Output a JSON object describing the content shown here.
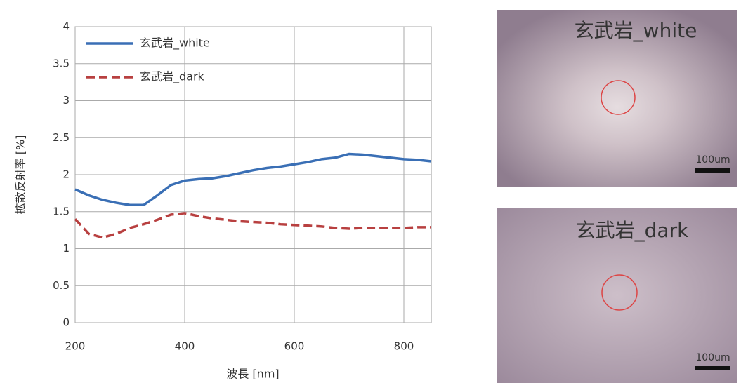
{
  "chart_data": {
    "type": "line",
    "x_label": "波長 [nm]",
    "y_label": "拡散反射率 [%]",
    "x": [
      200,
      225,
      250,
      275,
      300,
      325,
      350,
      375,
      400,
      425,
      450,
      475,
      500,
      525,
      550,
      575,
      600,
      625,
      650,
      675,
      700,
      725,
      750,
      775,
      800,
      825,
      850
    ],
    "series": [
      {
        "name": "玄武岩_white",
        "color": "#3a6fb5",
        "dashed": false,
        "values": [
          1.8,
          1.72,
          1.66,
          1.62,
          1.59,
          1.59,
          1.72,
          1.86,
          1.92,
          1.94,
          1.95,
          1.98,
          2.02,
          2.06,
          2.09,
          2.11,
          2.14,
          2.17,
          2.21,
          2.23,
          2.28,
          2.27,
          2.25,
          2.23,
          2.21,
          2.2,
          2.18
        ]
      },
      {
        "name": "玄武岩_dark",
        "color": "#b84040",
        "dashed": true,
        "values": [
          1.4,
          1.2,
          1.15,
          1.2,
          1.28,
          1.33,
          1.39,
          1.46,
          1.48,
          1.44,
          1.41,
          1.39,
          1.37,
          1.36,
          1.35,
          1.33,
          1.32,
          1.31,
          1.3,
          1.28,
          1.27,
          1.28,
          1.28,
          1.28,
          1.28,
          1.29,
          1.29
        ]
      }
    ],
    "xlim": [
      200,
      850
    ],
    "xticks": [
      200,
      400,
      600,
      800
    ],
    "ylim": [
      0,
      4
    ],
    "yticks": [
      0,
      0.5,
      1,
      1.5,
      2,
      2.5,
      3,
      3.5,
      4
    ],
    "grid": true,
    "legend": "top-left"
  },
  "images": [
    {
      "label": "玄武岩_white",
      "scale": "100um"
    },
    {
      "label": "玄武岩_dark",
      "scale": "100um"
    }
  ]
}
